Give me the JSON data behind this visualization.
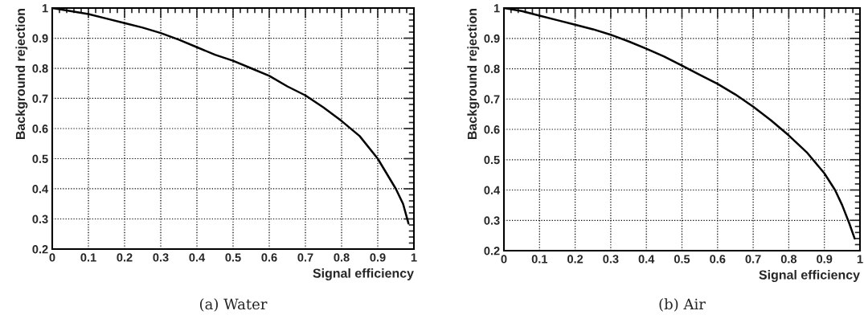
{
  "chart_data": [
    {
      "type": "line",
      "title": "(a) Water",
      "xlabel": "Signal efficiency",
      "ylabel": "Background rejection",
      "xlim": [
        0,
        1
      ],
      "ylim": [
        0.2,
        1
      ],
      "xticks": [
        0,
        0.1,
        0.2,
        0.3,
        0.4,
        0.5,
        0.6,
        0.7,
        0.8,
        0.9,
        1
      ],
      "yticks": [
        0.2,
        0.3,
        0.4,
        0.5,
        0.6,
        0.7,
        0.8,
        0.9,
        1
      ],
      "grid": true,
      "marker": "none",
      "line_style": "solid",
      "series": [
        {
          "color": "#000000",
          "x": [
            0,
            0.05,
            0.1,
            0.15,
            0.2,
            0.25,
            0.3,
            0.35,
            0.4,
            0.45,
            0.5,
            0.55,
            0.6,
            0.65,
            0.7,
            0.75,
            0.8,
            0.85,
            0.9,
            0.95,
            0.97,
            0.985
          ],
          "values": [
            1.0,
            0.99,
            0.98,
            0.965,
            0.95,
            0.935,
            0.917,
            0.895,
            0.87,
            0.845,
            0.825,
            0.8,
            0.775,
            0.74,
            0.71,
            0.67,
            0.625,
            0.575,
            0.5,
            0.4,
            0.35,
            0.285
          ]
        }
      ]
    },
    {
      "type": "line",
      "title": "(b) Air",
      "xlabel": "Signal efficiency",
      "ylabel": "Background rejection",
      "xlim": [
        0,
        1
      ],
      "ylim": [
        0.2,
        1
      ],
      "xticks": [
        0,
        0.1,
        0.2,
        0.3,
        0.4,
        0.5,
        0.6,
        0.7,
        0.8,
        0.9,
        1
      ],
      "yticks": [
        0.2,
        0.3,
        0.4,
        0.5,
        0.6,
        0.7,
        0.8,
        0.9,
        1
      ],
      "grid": true,
      "marker": "none",
      "line_style": "solid",
      "series": [
        {
          "color": "#000000",
          "x": [
            0,
            0.05,
            0.1,
            0.15,
            0.2,
            0.25,
            0.3,
            0.35,
            0.4,
            0.45,
            0.5,
            0.55,
            0.6,
            0.65,
            0.7,
            0.75,
            0.8,
            0.85,
            0.9,
            0.93,
            0.95,
            0.97,
            0.985
          ],
          "values": [
            1.0,
            0.99,
            0.975,
            0.96,
            0.945,
            0.93,
            0.912,
            0.89,
            0.866,
            0.84,
            0.81,
            0.78,
            0.75,
            0.715,
            0.675,
            0.63,
            0.58,
            0.525,
            0.455,
            0.4,
            0.35,
            0.29,
            0.24
          ]
        }
      ]
    }
  ]
}
